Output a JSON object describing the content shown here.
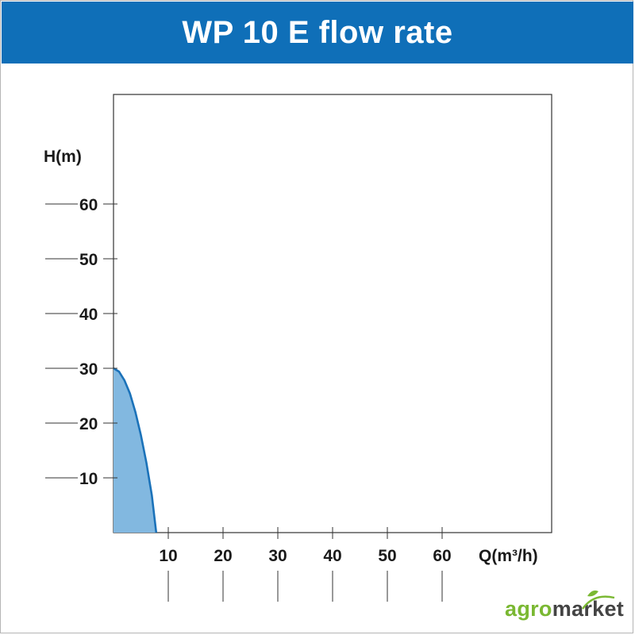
{
  "header": {
    "title": "WP 10 E flow rate"
  },
  "logo": {
    "agro": "agro",
    "market": "market"
  },
  "colors": {
    "header": "#0f6fb8",
    "curve_stroke": "#1b72b9",
    "curve_fill": "#82b8e0",
    "logo_green": "#7ab832",
    "logo_gray": "#444444"
  },
  "chart_data": {
    "type": "area",
    "title": "WP 10 E flow rate",
    "xlabel": "Q(m³/h)",
    "ylabel": "H(m)",
    "xlim": [
      0,
      80
    ],
    "ylim": [
      0,
      80
    ],
    "x_ticks": [
      10,
      20,
      30,
      40,
      50,
      60
    ],
    "y_ticks": [
      10,
      20,
      30,
      40,
      50,
      60
    ],
    "grid": false,
    "series": [
      {
        "x": [
          0,
          1,
          2,
          3,
          4,
          5,
          6,
          7,
          7.8
        ],
        "y": [
          30,
          29.4,
          27.8,
          25.4,
          22.0,
          17.8,
          12.8,
          6.8,
          0
        ]
      }
    ]
  }
}
